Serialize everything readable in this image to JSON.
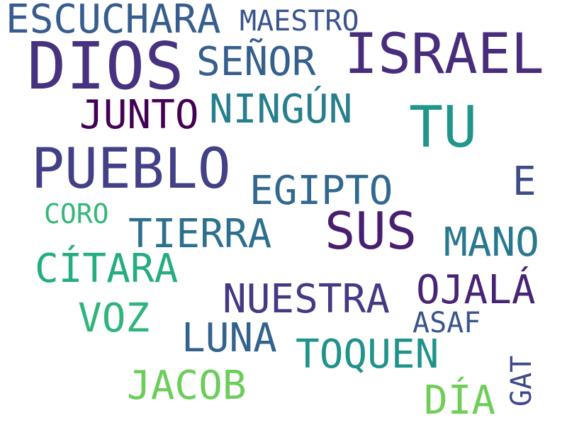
{
  "word_cloud": {
    "words": {
      "escuchara": "ESCUCHARA",
      "maestro": "MAESTRO",
      "dios": "DIOS",
      "israel": "ISRAEL",
      "senor": "SEÑOR",
      "junto": "JUNTO",
      "ningun": "NINGÚN",
      "tu": "TU",
      "pueblo": "PUEBLO",
      "egipto": "EGIPTO",
      "e": "E",
      "coro": "CORO",
      "sus": "SUS",
      "tierra": "TIERRA",
      "mano": "MANO",
      "citara": "CÍTARA",
      "ojala": "OJALÁ",
      "nuestra": "NUESTRA",
      "voz": "VOZ",
      "asaf": "ASAF",
      "luna": "LUNA",
      "toquen": "TOQUEN",
      "jacob": "JACOB",
      "dia": "DÍA",
      "gat": "GAT"
    },
    "colormap": "viridis",
    "background_color": "#ffffff"
  }
}
